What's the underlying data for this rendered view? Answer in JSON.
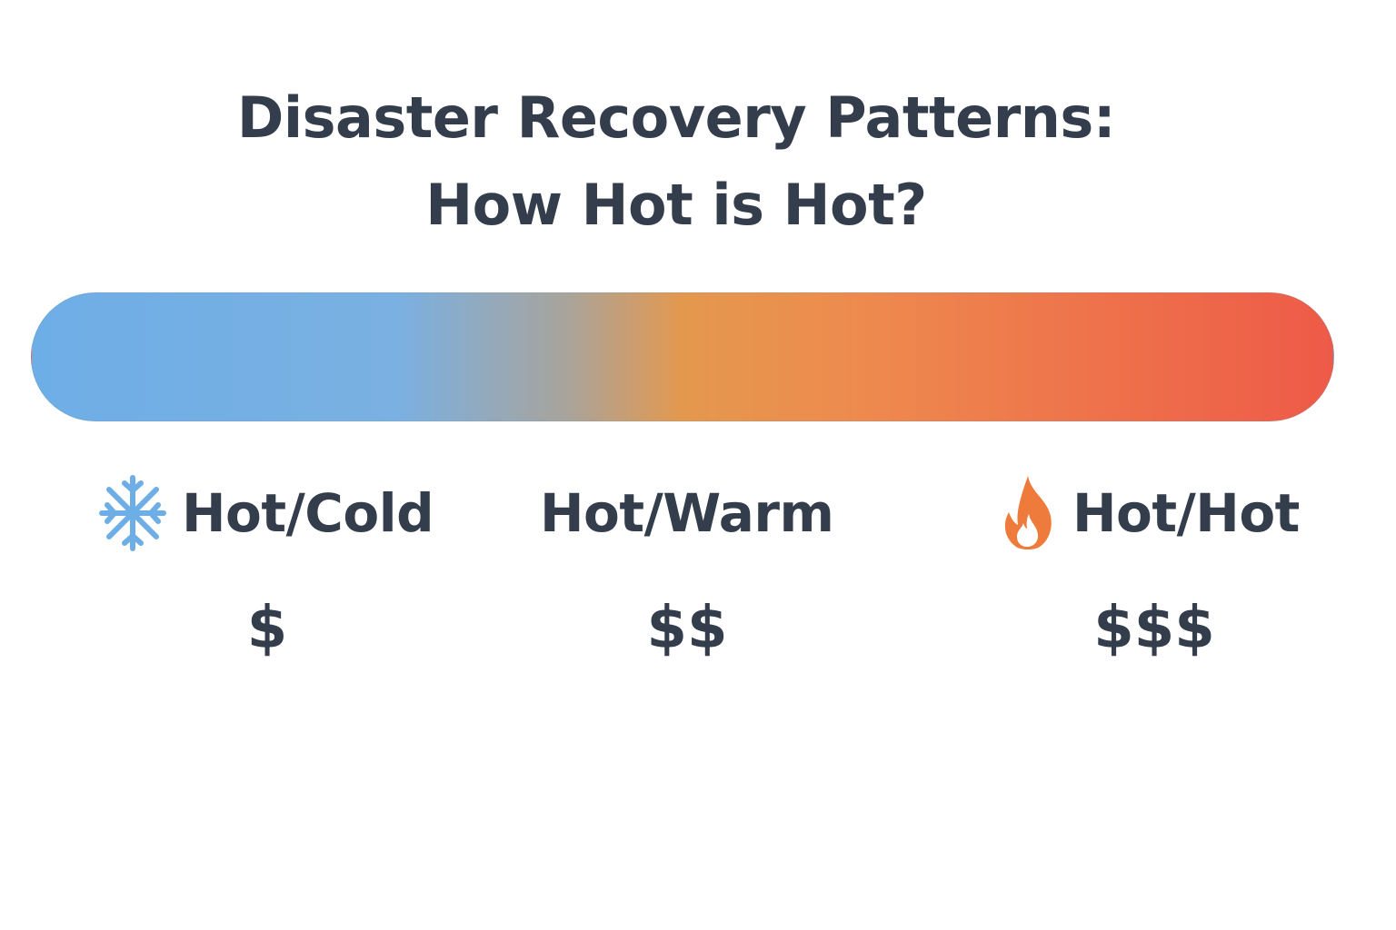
{
  "title": {
    "line1": "Disaster Recovery Patterns:",
    "line2": "How Hot is Hot?"
  },
  "scale": {
    "gradient_colors": [
      "#6eaee6",
      "#7ab0e2",
      "#a8a49c",
      "#e4984e",
      "#ee8a4e",
      "#ee5a48"
    ]
  },
  "tiers": [
    {
      "label": "Hot/Cold",
      "cost": "$",
      "icon": "snowflake-icon",
      "icon_color": "#6eaee6"
    },
    {
      "label": "Hot/Warm",
      "cost": "$$",
      "icon": "",
      "icon_color": ""
    },
    {
      "label": "Hot/Hot",
      "cost": "$$$",
      "icon": "fire-icon",
      "icon_color": "#ee7a3c"
    }
  ]
}
